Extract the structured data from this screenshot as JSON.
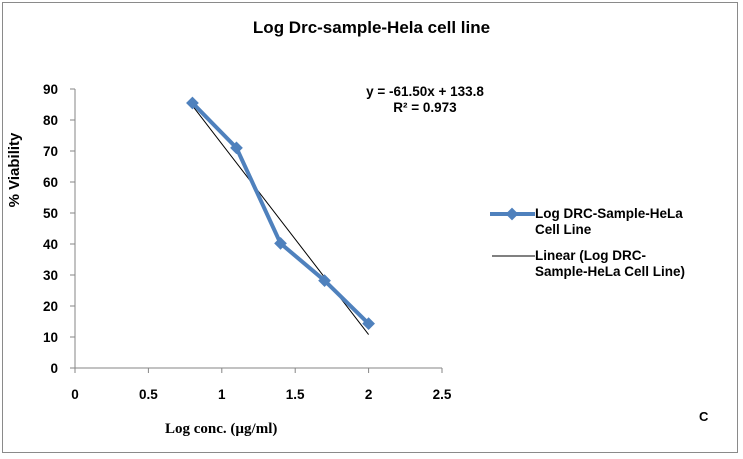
{
  "chart_data": {
    "type": "line",
    "title": "Log Drc-sample-Hela  cell line",
    "xlabel": "Log conc. (µg/ml)",
    "ylabel": "% Viability",
    "xlim": [
      0,
      2.5
    ],
    "ylim": [
      0,
      90
    ],
    "x_ticks": [
      "0",
      "0.5",
      "1",
      "1.5",
      "2",
      "2.5"
    ],
    "y_ticks": [
      "0",
      "10",
      "20",
      "30",
      "40",
      "50",
      "60",
      "70",
      "80",
      "90"
    ],
    "x_tick_values": [
      0,
      0.5,
      1,
      1.5,
      2,
      2.5
    ],
    "y_tick_values": [
      0,
      10,
      20,
      30,
      40,
      50,
      60,
      70,
      80,
      90
    ],
    "grid": false,
    "legend_position": "right",
    "series": [
      {
        "name": "Log DRC-Sample-HeLa Cell Line",
        "name_lines": [
          "Log DRC-Sample-HeLa",
          "Cell Line"
        ],
        "color": "#4f81bd",
        "marker": "diamond",
        "x": [
          0.8,
          1.1,
          1.4,
          1.7,
          2.0
        ],
        "y": [
          85.5,
          71,
          40.2,
          28.2,
          14.3
        ]
      }
    ],
    "trendline": {
      "name": "Linear (Log DRC-Sample-HeLa Cell Line)",
      "name_lines": [
        "Linear (Log DRC-",
        "Sample-HeLa Cell Line)"
      ],
      "color": "#000000",
      "slope": -61.5,
      "intercept": 133.8,
      "x_range": [
        0.8,
        2.0
      ],
      "equation": "y = -61.50x + 133.8",
      "r_squared": "R² = 0.973"
    },
    "annotations": [
      "C"
    ]
  }
}
